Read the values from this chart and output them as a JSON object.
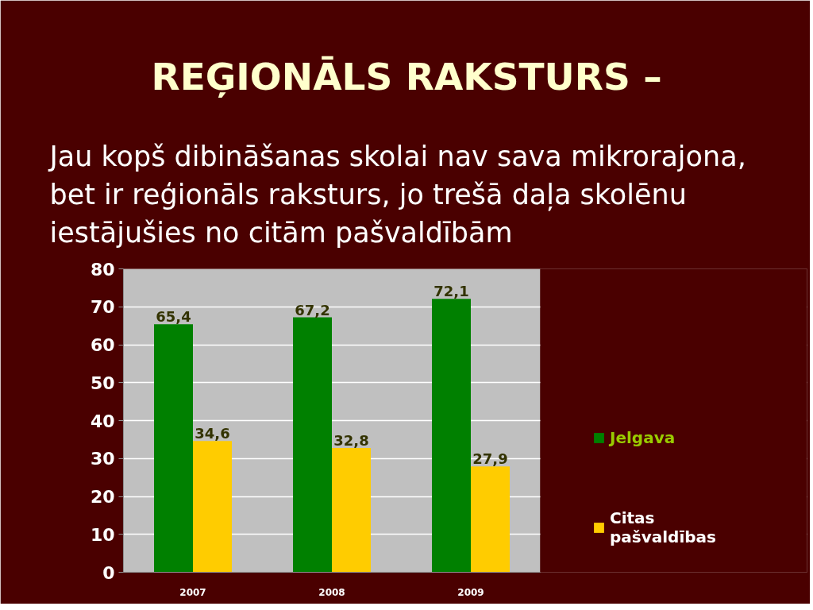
{
  "chart_data": {
    "type": "bar",
    "title": "REĢIONĀLS RAKSTURS –",
    "subtitle": "Jau kopš dibināšanas skolai nav sava mikrorajona, bet ir reģionāls raksturs, jo trešā daļa skolēnu iestājušies no citām pašvaldībām",
    "categories": [
      "2007",
      "2008",
      "2009"
    ],
    "series": [
      {
        "name": "Jelgava",
        "color": "#008000",
        "values": [
          65.4,
          67.2,
          72.1
        ],
        "value_labels": [
          "65,4",
          "67,2",
          "72,1"
        ]
      },
      {
        "name": "Citas pašvaldības",
        "color": "#ffcc00",
        "values": [
          34.6,
          32.8,
          27.9
        ],
        "value_labels": [
          "34,6",
          "32,8",
          "27,9"
        ]
      }
    ],
    "ylim": [
      0,
      80
    ],
    "yticks": [
      0,
      10,
      20,
      30,
      40,
      50,
      60,
      70,
      80
    ],
    "grid": "y",
    "legend": "right"
  }
}
